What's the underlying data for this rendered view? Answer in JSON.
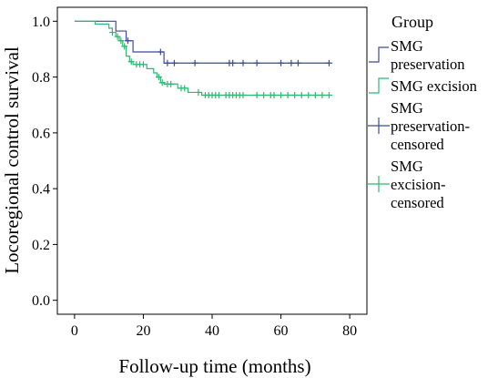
{
  "chart_data": {
    "type": "line",
    "subtype": "kaplan-meier",
    "xlabel": "Follow-up time (months)",
    "ylabel": "Locoregional control survival",
    "xlim": [
      -5,
      85
    ],
    "ylim": [
      -0.05,
      1.05
    ],
    "x_ticks": [
      "0",
      "20",
      "40",
      "60",
      "80"
    ],
    "y_ticks": [
      "0.0",
      "0.2",
      "0.4",
      "0.6",
      "0.8",
      "1.0"
    ],
    "legend": {
      "title": "Group",
      "placement": "right",
      "entries": [
        {
          "lines": [
            "SMG",
            "preservation"
          ],
          "style": "step",
          "color": "#3f4a9a"
        },
        {
          "lines": [
            "SMG excision"
          ],
          "style": "step",
          "color": "#2fb872"
        },
        {
          "lines": [
            "SMG",
            "preservation-",
            "censored"
          ],
          "style": "censor",
          "color": "#3f4a9a"
        },
        {
          "lines": [
            "SMG",
            "excision-",
            "censored"
          ],
          "style": "censor",
          "color": "#2fb872"
        }
      ]
    },
    "series": [
      {
        "name": "SMG preservation",
        "color": "#3f4a9a",
        "steps": [
          [
            0,
            1.0
          ],
          [
            12,
            0.965
          ],
          [
            15,
            0.93
          ],
          [
            17,
            0.89
          ],
          [
            26,
            0.85
          ],
          [
            74,
            0.85
          ]
        ],
        "censored": [
          [
            15.5,
            0.93
          ],
          [
            25,
            0.89
          ],
          [
            27,
            0.85
          ],
          [
            29,
            0.85
          ],
          [
            35,
            0.85
          ],
          [
            45,
            0.85
          ],
          [
            46,
            0.85
          ],
          [
            49,
            0.85
          ],
          [
            53,
            0.85
          ],
          [
            60,
            0.85
          ],
          [
            63,
            0.85
          ],
          [
            65,
            0.85
          ],
          [
            74,
            0.85
          ]
        ]
      },
      {
        "name": "SMG excision",
        "color": "#2fb872",
        "steps": [
          [
            0,
            1.0
          ],
          [
            6,
            0.99
          ],
          [
            10,
            0.975
          ],
          [
            11,
            0.96
          ],
          [
            12,
            0.945
          ],
          [
            13,
            0.93
          ],
          [
            14,
            0.91
          ],
          [
            15,
            0.875
          ],
          [
            16,
            0.855
          ],
          [
            17,
            0.845
          ],
          [
            21,
            0.83
          ],
          [
            23,
            0.815
          ],
          [
            24,
            0.8
          ],
          [
            25,
            0.78
          ],
          [
            26,
            0.775
          ],
          [
            30,
            0.76
          ],
          [
            33,
            0.745
          ],
          [
            37,
            0.735
          ],
          [
            74,
            0.735
          ]
        ],
        "censored": [
          [
            11,
            0.96
          ],
          [
            12.5,
            0.945
          ],
          [
            13.5,
            0.93
          ],
          [
            14.5,
            0.91
          ],
          [
            16.5,
            0.855
          ],
          [
            18,
            0.845
          ],
          [
            19,
            0.845
          ],
          [
            20,
            0.845
          ],
          [
            24.5,
            0.8
          ],
          [
            25.5,
            0.78
          ],
          [
            27,
            0.775
          ],
          [
            28,
            0.775
          ],
          [
            31,
            0.76
          ],
          [
            32,
            0.76
          ],
          [
            36,
            0.745
          ],
          [
            38,
            0.735
          ],
          [
            39,
            0.735
          ],
          [
            40,
            0.735
          ],
          [
            41,
            0.735
          ],
          [
            42,
            0.735
          ],
          [
            44,
            0.735
          ],
          [
            45,
            0.735
          ],
          [
            46,
            0.735
          ],
          [
            47,
            0.735
          ],
          [
            48,
            0.735
          ],
          [
            49,
            0.735
          ],
          [
            53,
            0.735
          ],
          [
            55,
            0.735
          ],
          [
            57,
            0.735
          ],
          [
            58,
            0.735
          ],
          [
            60,
            0.735
          ],
          [
            62,
            0.735
          ],
          [
            64,
            0.735
          ],
          [
            66,
            0.735
          ],
          [
            68,
            0.735
          ],
          [
            70,
            0.735
          ],
          [
            72,
            0.735
          ],
          [
            74,
            0.735
          ]
        ]
      }
    ]
  }
}
